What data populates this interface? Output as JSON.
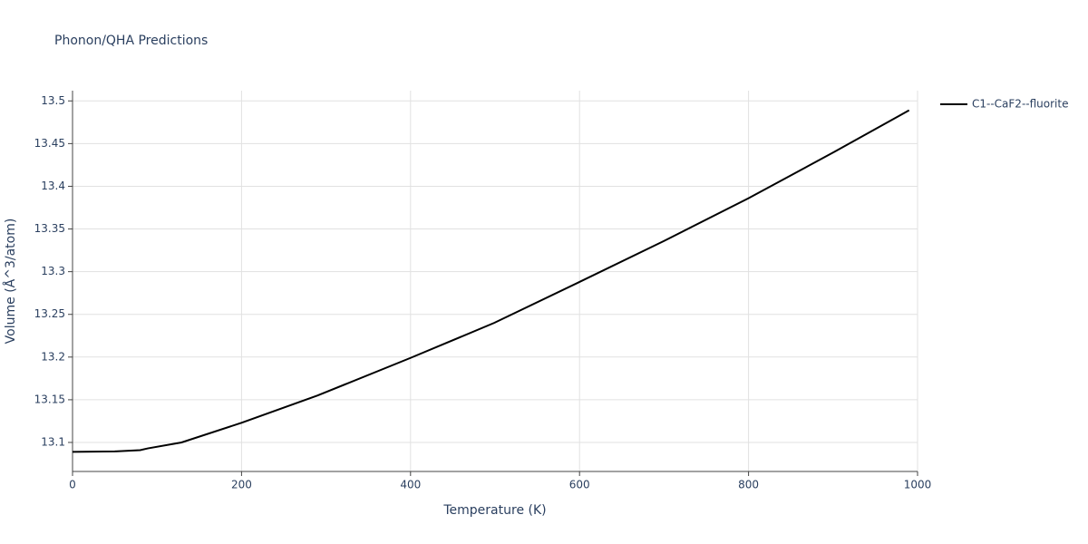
{
  "chart_data": {
    "type": "line",
    "title": "Phonon/QHA Predictions",
    "x_label": "Temperature (K)",
    "y_label": "Volume (Å^3/atom)",
    "x": [
      0,
      50,
      80,
      89,
      129,
      200,
      290,
      400,
      499,
      600,
      700,
      800,
      901,
      990
    ],
    "series": [
      {
        "name": "C1--CaF2--fluorite",
        "color": "#000000",
        "values": [
          13.089,
          13.0895,
          13.091,
          13.093,
          13.1,
          13.123,
          13.155,
          13.199,
          13.24,
          13.288,
          13.336,
          13.386,
          13.44,
          13.489
        ]
      }
    ],
    "xlim": [
      0,
      1000
    ],
    "xticks": [
      0,
      200,
      400,
      600,
      800,
      1000
    ],
    "ylim": [
      13.066,
      13.512
    ],
    "yticks": [
      13.1,
      13.15,
      13.2,
      13.25,
      13.3,
      13.35,
      13.4,
      13.45,
      13.5
    ],
    "grid": true,
    "legend": "right"
  }
}
